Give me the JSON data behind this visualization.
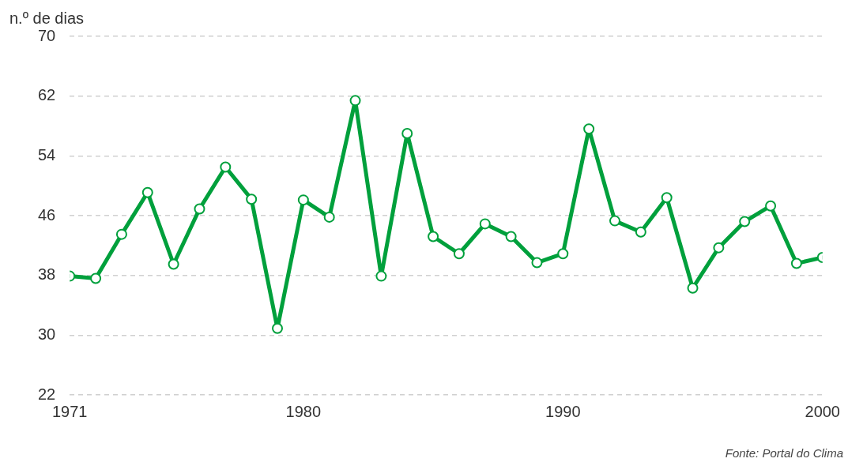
{
  "chart_data": {
    "type": "line",
    "ylabel": "n.º de dias",
    "annotations": [
      "Fonte: Portal do Clima"
    ],
    "x": [
      1971,
      1972,
      1973,
      1974,
      1975,
      1976,
      1977,
      1978,
      1979,
      1980,
      1981,
      1982,
      1983,
      1984,
      1985,
      1986,
      1987,
      1988,
      1989,
      1990,
      1991,
      1992,
      1993,
      1994,
      1995,
      1996,
      1997,
      1998,
      1999,
      2000
    ],
    "series": [
      {
        "color": "#00a03c",
        "values": [
          37.9,
          37.6,
          43.5,
          49.1,
          39.5,
          46.9,
          52.5,
          48.2,
          30.9,
          48.1,
          45.8,
          61.4,
          37.9,
          57.0,
          43.2,
          40.9,
          44.9,
          43.2,
          39.7,
          40.9,
          57.6,
          45.3,
          43.8,
          48.4,
          36.3,
          41.7,
          45.2,
          47.3,
          39.6,
          40.4
        ]
      }
    ],
    "xlim": [
      1971,
      2000
    ],
    "xticks": [
      1971,
      1980,
      1990,
      2000
    ],
    "ylim": [
      22,
      70
    ],
    "yticks": [
      22,
      30,
      38,
      46,
      54,
      62,
      70
    ],
    "grid": "y",
    "legend": false,
    "marker": "circle",
    "line_style": "solid"
  }
}
